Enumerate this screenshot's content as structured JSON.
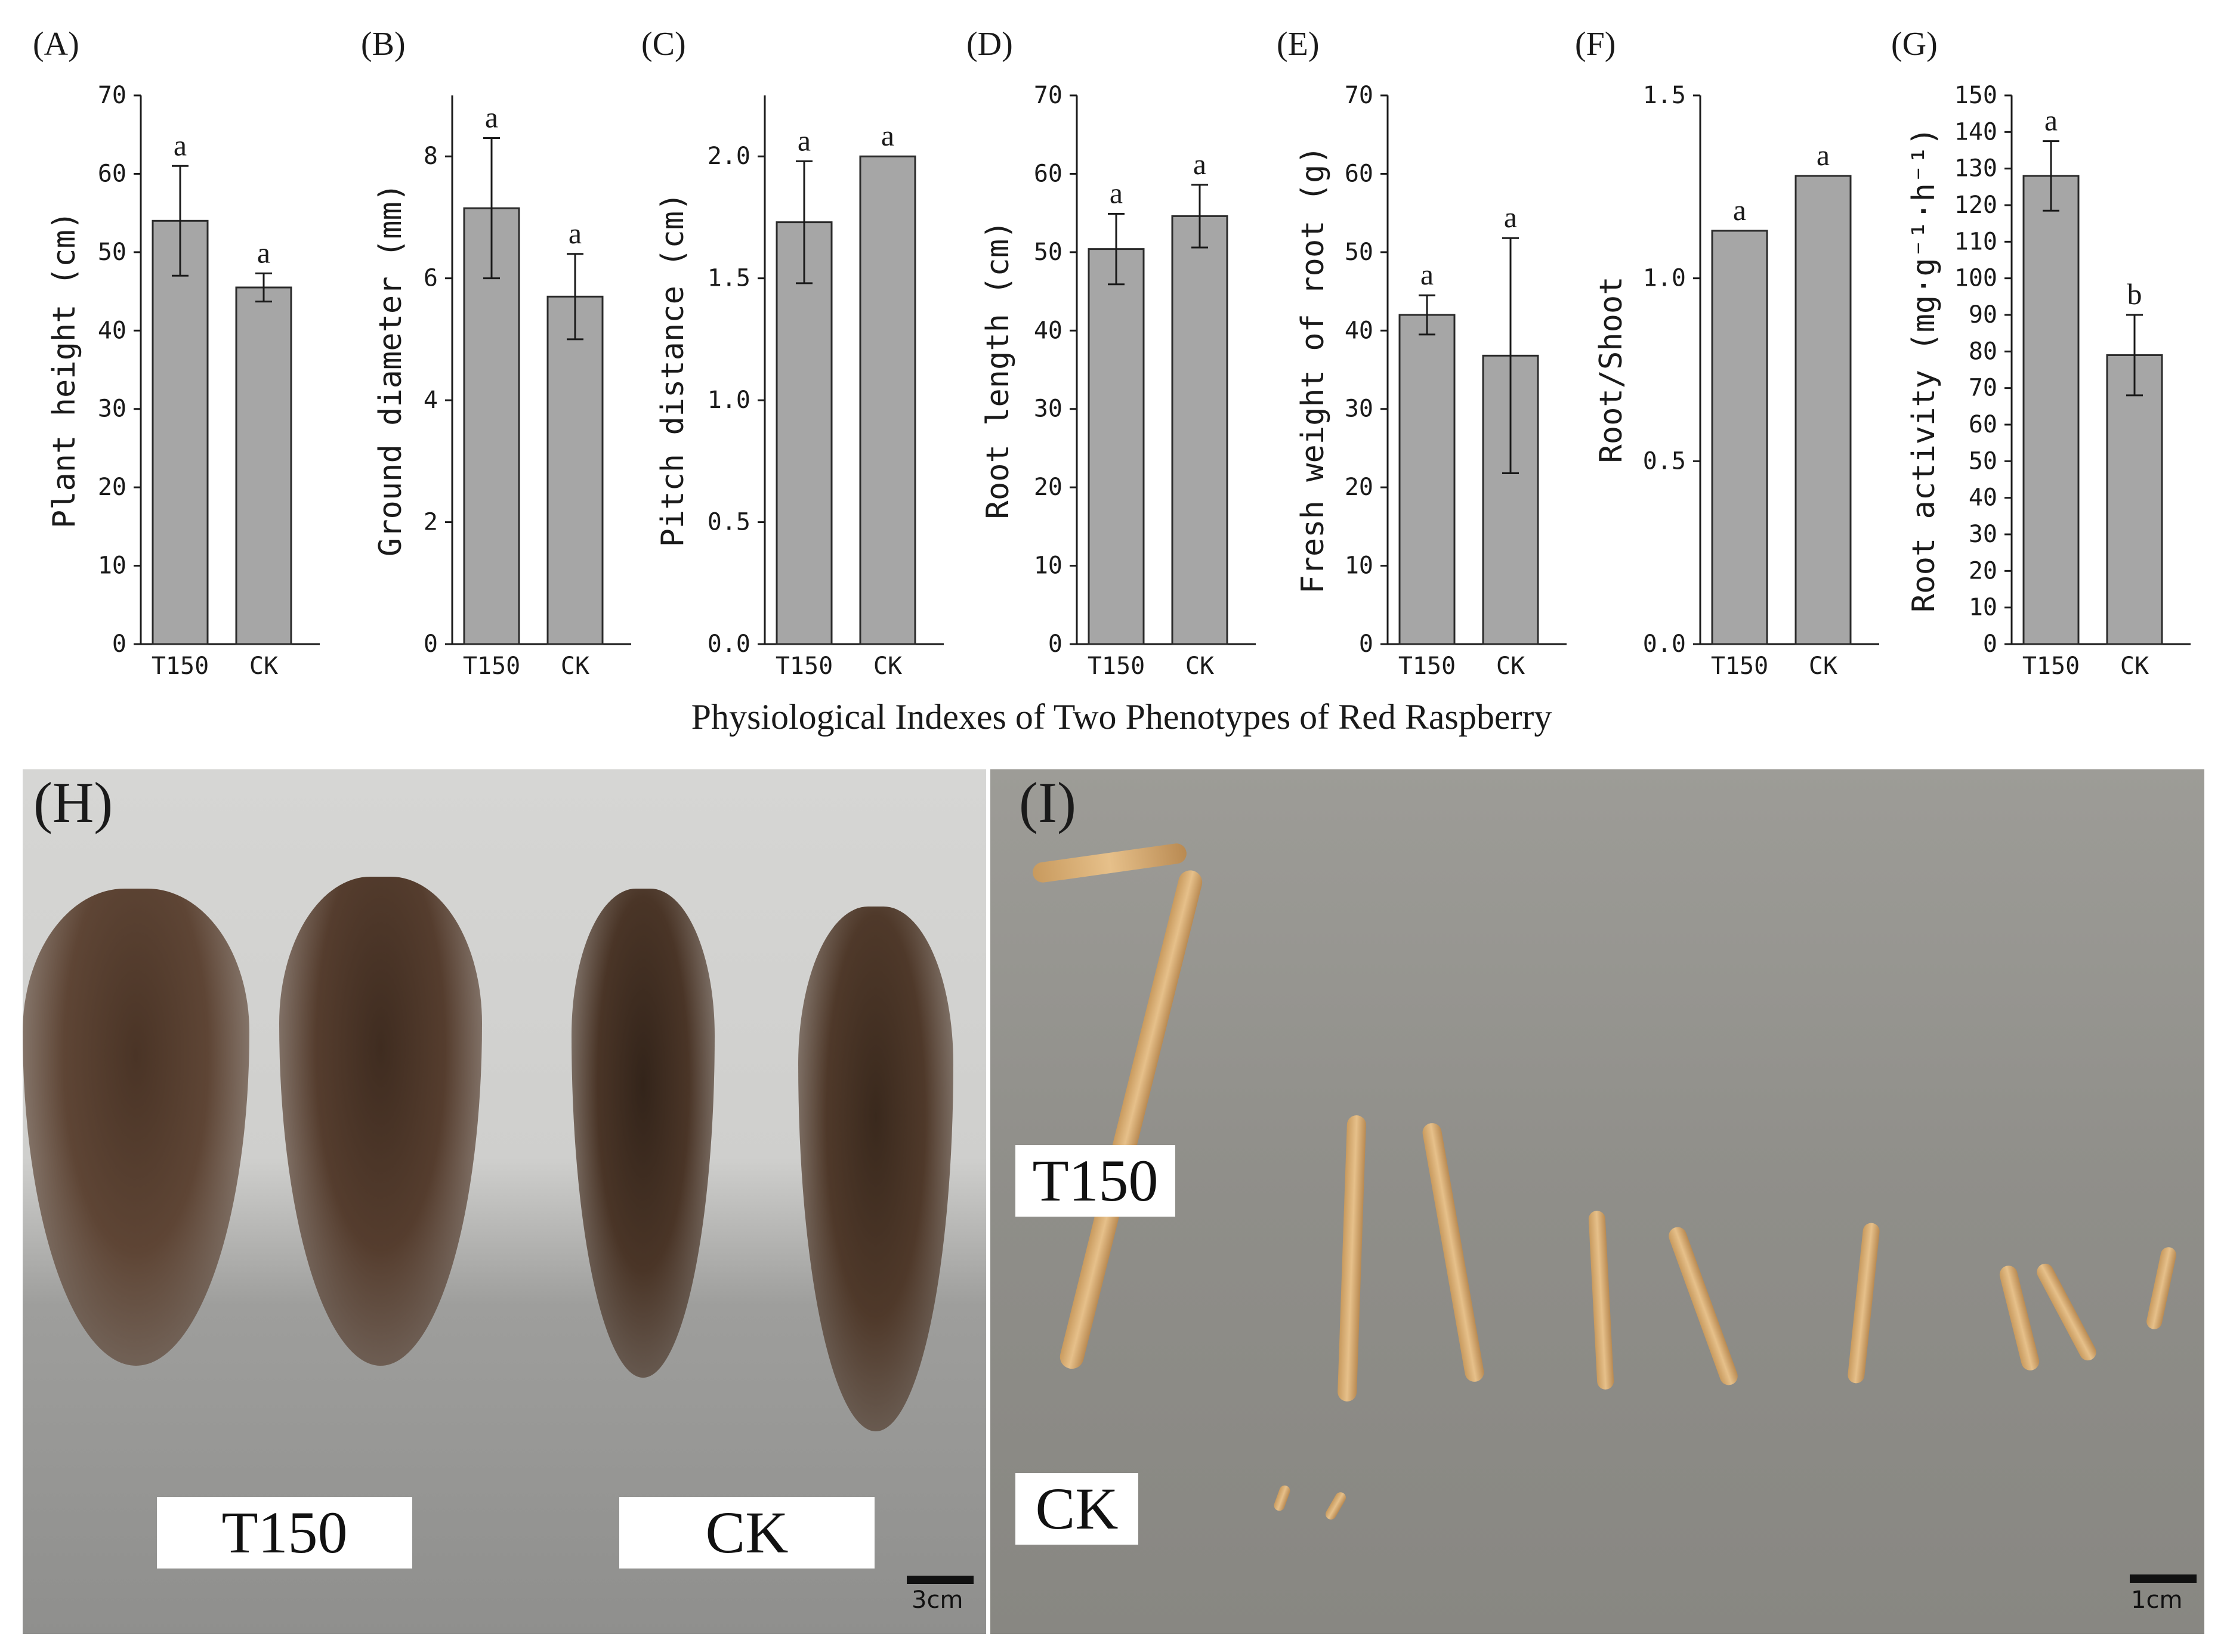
{
  "caption": "Physiological Indexes of Two Phenotypes of Red Raspberry",
  "colors": {
    "bar_fill": "#a6a6a6",
    "bar_stroke": "#2b2b2b",
    "axis": "#1a1a1a"
  },
  "chart_data": [
    {
      "type": "bar",
      "panel": "(A)",
      "ylabel": "Plant height (cm)",
      "categories": [
        "T150",
        "CK"
      ],
      "values": [
        54.0,
        45.5
      ],
      "errors": [
        7.0,
        1.8
      ],
      "significance": [
        "a",
        "a"
      ],
      "ylim": [
        0,
        70
      ],
      "yticks": [
        0,
        10,
        20,
        30,
        40,
        50,
        60,
        70
      ],
      "ytick_labels": [
        "0",
        "10",
        "20",
        "30",
        "40",
        "50",
        "60",
        "70"
      ]
    },
    {
      "type": "bar",
      "panel": "(B)",
      "ylabel": "Ground diameter (mm)",
      "categories": [
        "T150",
        "CK"
      ],
      "values": [
        7.15,
        5.7
      ],
      "errors": [
        1.15,
        0.7
      ],
      "significance": [
        "a",
        "a"
      ],
      "ylim": [
        0,
        9
      ],
      "yticks": [
        0,
        2,
        4,
        6,
        8
      ],
      "ytick_labels": [
        "0",
        "2",
        "4",
        "6",
        "8"
      ]
    },
    {
      "type": "bar",
      "panel": "(C)",
      "ylabel": "Pitch distance (cm)",
      "categories": [
        "T150",
        "CK"
      ],
      "values": [
        1.73,
        2.0
      ],
      "errors": [
        0.25,
        0
      ],
      "significance": [
        "a",
        "a"
      ],
      "ylim": [
        0,
        2.25
      ],
      "yticks": [
        0,
        0.5,
        1.0,
        1.5,
        2.0
      ],
      "ytick_labels": [
        "0.0",
        "0.5",
        "1.0",
        "1.5",
        "2.0"
      ]
    },
    {
      "type": "bar",
      "panel": "(D)",
      "ylabel": "Root length (cm)",
      "categories": [
        "T150",
        "CK"
      ],
      "values": [
        50.4,
        54.6
      ],
      "errors": [
        4.5,
        4.0
      ],
      "significance": [
        "a",
        "a"
      ],
      "ylim": [
        0,
        70
      ],
      "yticks": [
        0,
        10,
        20,
        30,
        40,
        50,
        60,
        70
      ],
      "ytick_labels": [
        "0",
        "10",
        "20",
        "30",
        "40",
        "50",
        "60",
        "70"
      ]
    },
    {
      "type": "bar",
      "panel": "(E)",
      "ylabel": "Fresh weight of root (g)",
      "categories": [
        "T150",
        "CK"
      ],
      "values": [
        42.0,
        36.8
      ],
      "errors": [
        2.5,
        15.0
      ],
      "significance": [
        "a",
        "a"
      ],
      "ylim": [
        0,
        70
      ],
      "yticks": [
        0,
        10,
        20,
        30,
        40,
        50,
        60,
        70
      ],
      "ytick_labels": [
        "0",
        "10",
        "20",
        "30",
        "40",
        "50",
        "60",
        "70"
      ]
    },
    {
      "type": "bar",
      "panel": "(F)",
      "ylabel": "Root/Shoot",
      "categories": [
        "T150",
        "CK"
      ],
      "values": [
        1.13,
        1.28
      ],
      "errors": [
        0,
        0
      ],
      "significance": [
        "a",
        "a"
      ],
      "ylim": [
        0,
        1.5
      ],
      "yticks": [
        0,
        0.5,
        1.0,
        1.5
      ],
      "ytick_labels": [
        "0.0",
        "0.5",
        "1.0",
        "1.5"
      ]
    },
    {
      "type": "bar",
      "panel": "(G)",
      "ylabel": "Root activity (mg·g⁻¹·h⁻¹)",
      "categories": [
        "T150",
        "CK"
      ],
      "values": [
        128,
        79
      ],
      "errors": [
        9.5,
        11
      ],
      "significance": [
        "a",
        "b"
      ],
      "ylim": [
        0,
        150
      ],
      "yticks": [
        0,
        10,
        20,
        30,
        40,
        50,
        60,
        70,
        80,
        90,
        100,
        110,
        120,
        130,
        140,
        150
      ],
      "ytick_labels": [
        "0",
        "10",
        "20",
        "30",
        "40",
        "50",
        "60",
        "70",
        "80",
        "90",
        "100",
        "110",
        "120",
        "130",
        "140",
        "150"
      ]
    }
  ],
  "photo_h": {
    "panel": "(H)",
    "label_left": "T150",
    "label_right": "CK",
    "scale": "3cm"
  },
  "photo_i": {
    "panel": "(I)",
    "label_top": "T150",
    "label_bottom": "CK",
    "scale": "1cm"
  }
}
